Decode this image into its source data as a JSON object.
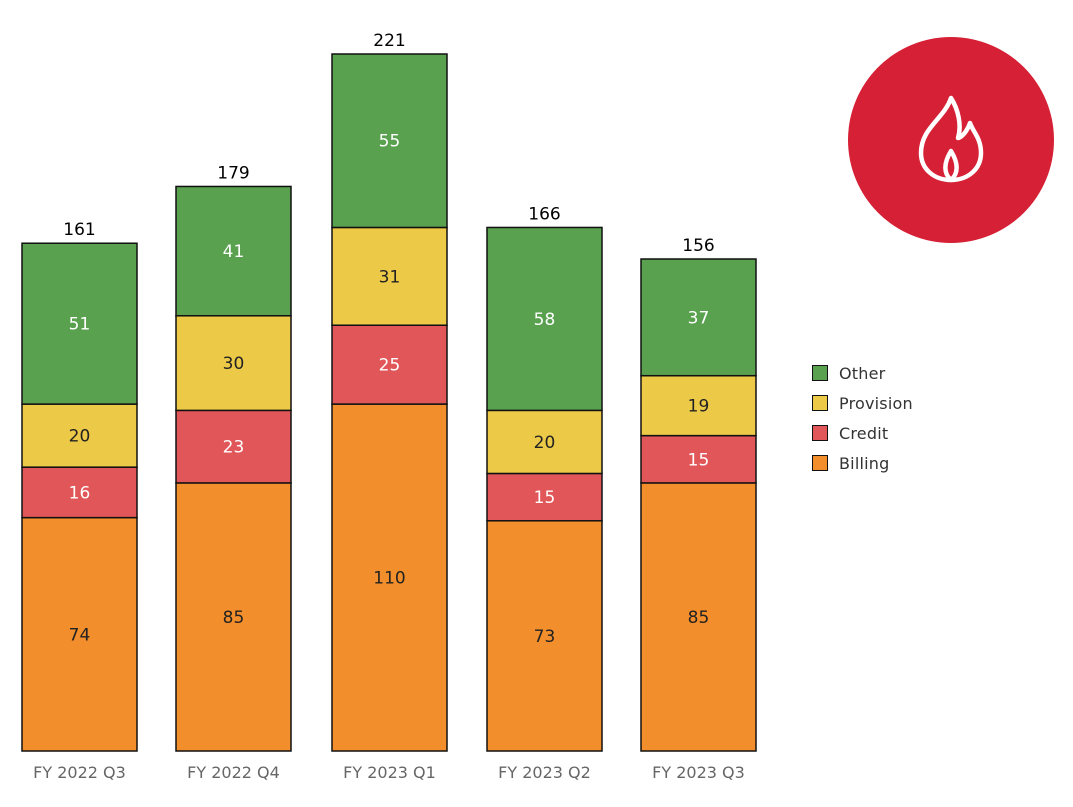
{
  "chart_data": {
    "type": "bar",
    "stacked": true,
    "categories": [
      "FY 2022 Q3",
      "FY 2022 Q4",
      "FY 2023 Q1",
      "FY 2023 Q2",
      "FY 2023 Q3"
    ],
    "series": [
      {
        "name": "Billing",
        "color": "#F28E2B",
        "values": [
          74,
          85,
          110,
          73,
          85
        ]
      },
      {
        "name": "Credit",
        "color": "#E15759",
        "values": [
          16,
          23,
          25,
          15,
          15
        ]
      },
      {
        "name": "Provision",
        "color": "#EDC948",
        "values": [
          20,
          30,
          31,
          20,
          19
        ]
      },
      {
        "name": "Other",
        "color": "#59A14F",
        "values": [
          51,
          41,
          55,
          58,
          37
        ]
      }
    ],
    "totals": [
      161,
      179,
      221,
      166,
      156
    ],
    "legend_order": [
      "Other",
      "Provision",
      "Credit",
      "Billing"
    ],
    "legend_position": "right",
    "grid": false,
    "ylim": [
      0,
      221
    ]
  },
  "badge": {
    "icon": "flame-icon",
    "color": "#D62035"
  }
}
